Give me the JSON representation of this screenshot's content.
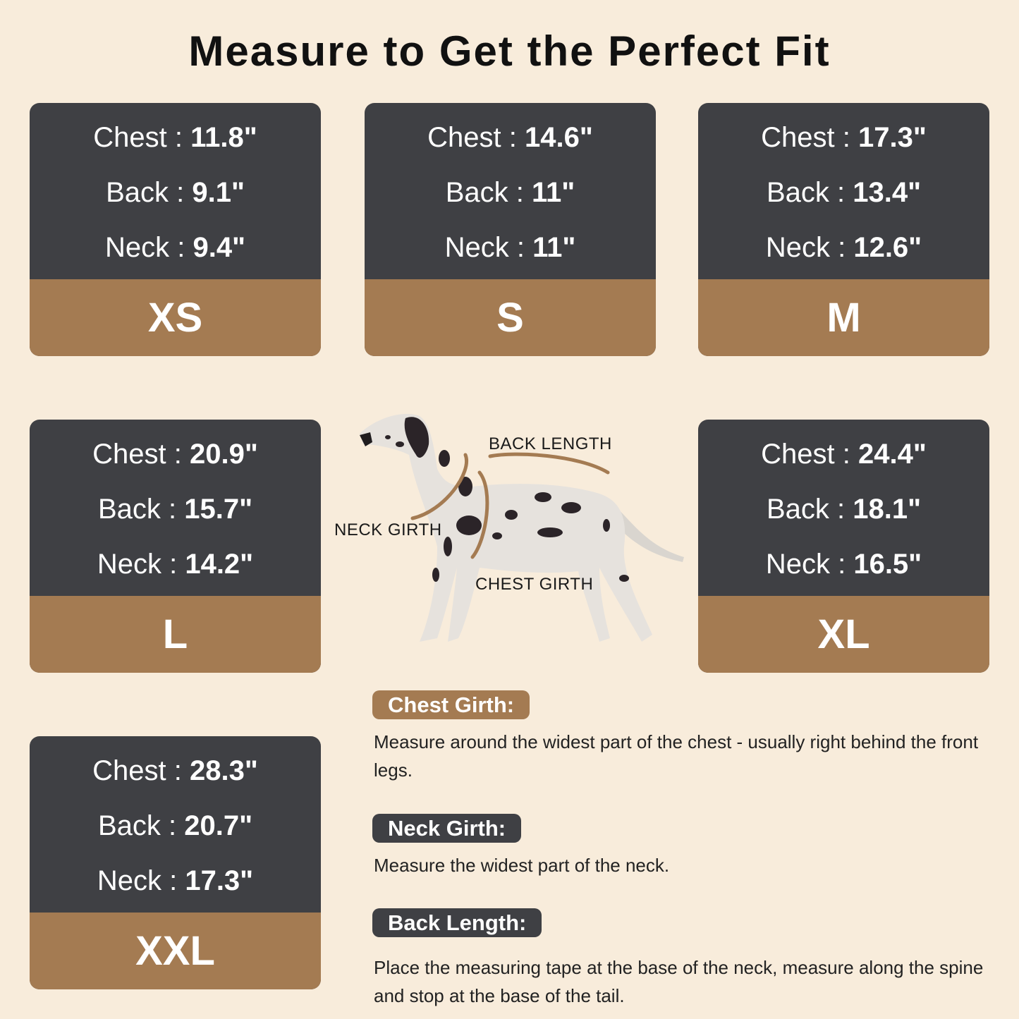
{
  "title": "Measure to Get the Perfect Fit",
  "colors": {
    "background": "#f8ecdb",
    "card_dark": "#3f4044",
    "card_accent": "#a47b52"
  },
  "sizes": [
    {
      "size": "XS",
      "chest_label": "Chest :",
      "chest": "11.8\"",
      "back_label": "Back :",
      "back": "9.1\"",
      "neck_label": "Neck :",
      "neck": "9.4\""
    },
    {
      "size": "S",
      "chest_label": "Chest :",
      "chest": "14.6\"",
      "back_label": "Back :",
      "back": "11\"",
      "neck_label": "Neck :",
      "neck": "11\""
    },
    {
      "size": "M",
      "chest_label": "Chest :",
      "chest": "17.3\"",
      "back_label": "Back :",
      "back": "13.4\"",
      "neck_label": "Neck :",
      "neck": "12.6\""
    },
    {
      "size": "L",
      "chest_label": "Chest :",
      "chest": "20.9\"",
      "back_label": "Back :",
      "back": "15.7\"",
      "neck_label": "Neck :",
      "neck": "14.2\""
    },
    {
      "size": "XL",
      "chest_label": "Chest :",
      "chest": "24.4\"",
      "back_label": "Back :",
      "back": "18.1\"",
      "neck_label": "Neck :",
      "neck": "16.5\""
    },
    {
      "size": "XXL",
      "chest_label": "Chest :",
      "chest": "28.3\"",
      "back_label": "Back :",
      "back": "20.7\"",
      "neck_label": "Neck :",
      "neck": "17.3\""
    }
  ],
  "diagram": {
    "back_length": "BACK LENGTH",
    "neck_girth": "NECK GIRTH",
    "chest_girth": "CHEST GIRTH"
  },
  "instructions": [
    {
      "label": "Chest Girth:",
      "text": "Measure around the widest part of the chest - usually right behind the front legs."
    },
    {
      "label": "Neck Girth:",
      "text": "Measure the widest part of the neck."
    },
    {
      "label": "Back Length:",
      "text": "Place the measuring tape at the base of the neck, measure along the spine and stop at the base of the tail."
    }
  ]
}
